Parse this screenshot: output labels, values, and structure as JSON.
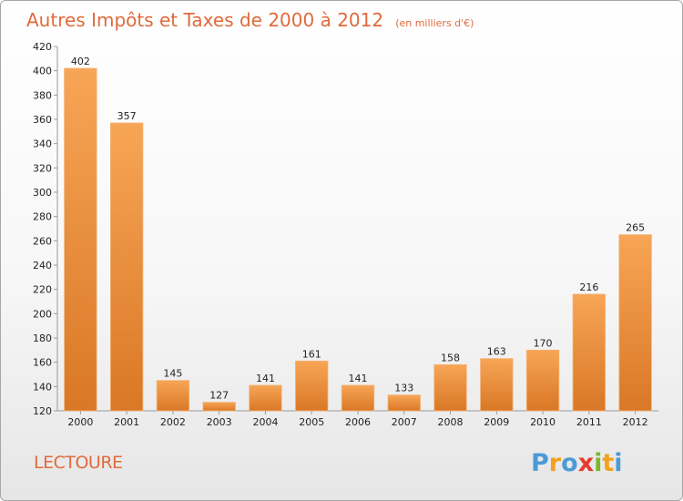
{
  "chart_data": {
    "type": "bar",
    "title": "Autres Impôts et Taxes de 2000 à 2012",
    "subtitle": "(en milliers d'€)",
    "categories": [
      "2000",
      "2001",
      "2002",
      "2003",
      "2004",
      "2005",
      "2006",
      "2007",
      "2008",
      "2009",
      "2010",
      "2011",
      "2012"
    ],
    "values": [
      402,
      357,
      145,
      127,
      141,
      161,
      141,
      133,
      158,
      163,
      170,
      216,
      265
    ],
    "ylim": [
      120,
      420
    ],
    "yticks": [
      120,
      140,
      160,
      180,
      200,
      220,
      240,
      260,
      280,
      300,
      320,
      340,
      360,
      380,
      400,
      420
    ],
    "grid": false,
    "bar_color_top": "#f7a556",
    "bar_color_bottom": "#d97826"
  },
  "commune": "LECTOURE",
  "logo": {
    "text": "Proxiti",
    "letters": [
      "P",
      "r",
      "o",
      "x",
      "i",
      "t",
      "i"
    ],
    "colors": [
      "#4b9bd6",
      "#f2a21c",
      "#4b9bd6",
      "#e63a2e",
      "#7ab829",
      "#f2a21c",
      "#4b9bd6"
    ]
  }
}
